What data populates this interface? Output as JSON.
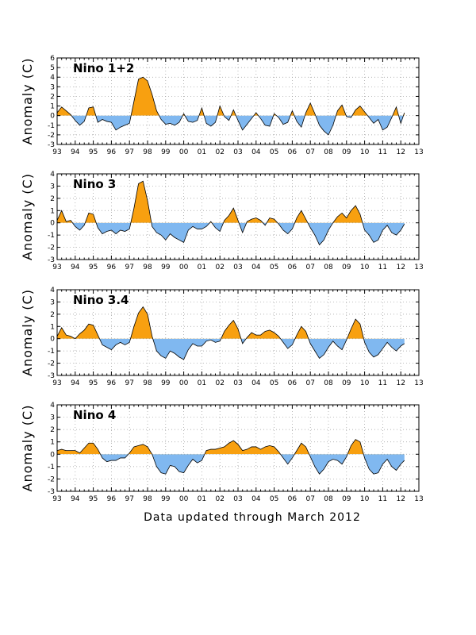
{
  "footer": "Data updated through March 2012",
  "colors": {
    "positive": "#f8a010",
    "negative": "#80b8f0",
    "line": "#000000"
  },
  "chart_data": [
    {
      "type": "area",
      "title": "Nino 1+2",
      "ylabel": "Anomaly (C)",
      "ylim": [
        -3,
        6
      ],
      "yticks": [
        -3,
        -2,
        -1,
        0,
        1,
        2,
        3,
        4,
        5,
        6
      ],
      "xlim": [
        1993,
        2013
      ],
      "xticks": [
        "93",
        "94",
        "95",
        "96",
        "97",
        "98",
        "99",
        "00",
        "01",
        "02",
        "03",
        "04",
        "05",
        "06",
        "07",
        "08",
        "09",
        "10",
        "11",
        "12",
        "13"
      ],
      "x": [
        1993.0,
        1993.25,
        1993.5,
        1993.75,
        1994.0,
        1994.25,
        1994.5,
        1994.75,
        1995.0,
        1995.25,
        1995.5,
        1995.75,
        1996.0,
        1996.25,
        1996.5,
        1996.75,
        1997.0,
        1997.25,
        1997.5,
        1997.75,
        1998.0,
        1998.25,
        1998.5,
        1998.75,
        1999.0,
        1999.25,
        1999.5,
        1999.75,
        2000.0,
        2000.25,
        2000.5,
        2000.75,
        2001.0,
        2001.25,
        2001.5,
        2001.75,
        2002.0,
        2002.25,
        2002.5,
        2002.75,
        2003.0,
        2003.25,
        2003.5,
        2003.75,
        2004.0,
        2004.25,
        2004.5,
        2004.75,
        2005.0,
        2005.25,
        2005.5,
        2005.75,
        2006.0,
        2006.25,
        2006.5,
        2006.75,
        2007.0,
        2007.25,
        2007.5,
        2007.75,
        2008.0,
        2008.25,
        2008.5,
        2008.75,
        2009.0,
        2009.25,
        2009.5,
        2009.75,
        2010.0,
        2010.25,
        2010.5,
        2010.75,
        2011.0,
        2011.25,
        2011.5,
        2011.75,
        2012.0,
        2012.2
      ],
      "values": [
        0.3,
        0.9,
        0.5,
        0.1,
        -0.5,
        -1.0,
        -0.6,
        0.8,
        0.9,
        -0.7,
        -0.4,
        -0.6,
        -0.7,
        -1.5,
        -1.2,
        -1.0,
        -0.8,
        1.5,
        3.8,
        4.0,
        3.6,
        2.2,
        0.5,
        -0.4,
        -0.9,
        -0.8,
        -1.0,
        -0.7,
        0.2,
        -0.6,
        -0.7,
        -0.5,
        0.8,
        -0.8,
        -1.1,
        -0.7,
        1.0,
        -0.1,
        -0.5,
        0.6,
        -0.5,
        -1.5,
        -0.9,
        -0.3,
        0.3,
        -0.3,
        -1.0,
        -1.1,
        0.2,
        -0.2,
        -0.9,
        -0.7,
        0.5,
        -0.6,
        -1.2,
        0.3,
        1.3,
        0.2,
        -1.0,
        -1.6,
        -2.0,
        -1.0,
        0.5,
        1.1,
        -0.1,
        -0.2,
        0.6,
        1.0,
        0.4,
        -0.2,
        -0.8,
        -0.4,
        -1.5,
        -1.2,
        -0.2,
        0.9,
        -0.8,
        0.3
      ]
    },
    {
      "type": "area",
      "title": "Nino 3",
      "ylabel": "Anomaly (C)",
      "ylim": [
        -3,
        4
      ],
      "yticks": [
        -3,
        -2,
        -1,
        0,
        1,
        2,
        3,
        4
      ],
      "xlim": [
        1993,
        2013
      ],
      "xticks": [
        "93",
        "94",
        "95",
        "96",
        "97",
        "98",
        "99",
        "00",
        "01",
        "02",
        "03",
        "04",
        "05",
        "06",
        "07",
        "08",
        "09",
        "10",
        "11",
        "12",
        "13"
      ],
      "x": [
        1993.0,
        1993.25,
        1993.5,
        1993.75,
        1994.0,
        1994.25,
        1994.5,
        1994.75,
        1995.0,
        1995.25,
        1995.5,
        1995.75,
        1996.0,
        1996.25,
        1996.5,
        1996.75,
        1997.0,
        1997.25,
        1997.5,
        1997.75,
        1998.0,
        1998.25,
        1998.5,
        1998.75,
        1999.0,
        1999.25,
        1999.5,
        1999.75,
        2000.0,
        2000.25,
        2000.5,
        2000.75,
        2001.0,
        2001.25,
        2001.5,
        2001.75,
        2002.0,
        2002.25,
        2002.5,
        2002.75,
        2003.0,
        2003.25,
        2003.5,
        2003.75,
        2004.0,
        2004.25,
        2004.5,
        2004.75,
        2005.0,
        2005.25,
        2005.5,
        2005.75,
        2006.0,
        2006.25,
        2006.5,
        2006.75,
        2007.0,
        2007.25,
        2007.5,
        2007.75,
        2008.0,
        2008.25,
        2008.5,
        2008.75,
        2009.0,
        2009.25,
        2009.5,
        2009.75,
        2010.0,
        2010.25,
        2010.5,
        2010.75,
        2011.0,
        2011.25,
        2011.5,
        2011.75,
        2012.0,
        2012.2
      ],
      "values": [
        0.2,
        1.0,
        0.1,
        0.2,
        -0.3,
        -0.6,
        -0.2,
        0.8,
        0.7,
        -0.4,
        -0.9,
        -0.7,
        -0.6,
        -0.9,
        -0.6,
        -0.7,
        -0.5,
        1.2,
        3.2,
        3.4,
        1.8,
        -0.3,
        -0.8,
        -1.0,
        -1.4,
        -0.9,
        -1.2,
        -1.4,
        -1.6,
        -0.6,
        -0.3,
        -0.5,
        -0.5,
        -0.3,
        0.1,
        -0.4,
        -0.7,
        0.2,
        0.6,
        1.2,
        0.2,
        -0.8,
        0.1,
        0.3,
        0.4,
        0.2,
        -0.2,
        0.4,
        0.3,
        -0.1,
        -0.6,
        -0.9,
        -0.5,
        0.4,
        1.0,
        0.3,
        -0.4,
        -1.0,
        -1.8,
        -1.4,
        -0.6,
        0.0,
        0.5,
        0.8,
        0.4,
        1.0,
        1.4,
        0.7,
        -0.6,
        -1.0,
        -1.6,
        -1.4,
        -0.6,
        -0.2,
        -0.8,
        -1.0,
        -0.6,
        -0.1
      ]
    },
    {
      "type": "area",
      "title": "Nino 3.4",
      "ylabel": "Anomaly (C)",
      "ylim": [
        -3,
        4
      ],
      "yticks": [
        -3,
        -2,
        -1,
        0,
        1,
        2,
        3,
        4
      ],
      "xlim": [
        1993,
        2013
      ],
      "xticks": [
        "93",
        "94",
        "95",
        "96",
        "97",
        "98",
        "99",
        "00",
        "01",
        "02",
        "03",
        "04",
        "05",
        "06",
        "07",
        "08",
        "09",
        "10",
        "11",
        "12",
        "13"
      ],
      "x": [
        1993.0,
        1993.25,
        1993.5,
        1993.75,
        1994.0,
        1994.25,
        1994.5,
        1994.75,
        1995.0,
        1995.25,
        1995.5,
        1995.75,
        1996.0,
        1996.25,
        1996.5,
        1996.75,
        1997.0,
        1997.25,
        1997.5,
        1997.75,
        1998.0,
        1998.25,
        1998.5,
        1998.75,
        1999.0,
        1999.25,
        1999.5,
        1999.75,
        2000.0,
        2000.25,
        2000.5,
        2000.75,
        2001.0,
        2001.25,
        2001.5,
        2001.75,
        2002.0,
        2002.25,
        2002.5,
        2002.75,
        2003.0,
        2003.25,
        2003.5,
        2003.75,
        2004.0,
        2004.25,
        2004.5,
        2004.75,
        2005.0,
        2005.25,
        2005.5,
        2005.75,
        2006.0,
        2006.25,
        2006.5,
        2006.75,
        2007.0,
        2007.25,
        2007.5,
        2007.75,
        2008.0,
        2008.25,
        2008.5,
        2008.75,
        2009.0,
        2009.25,
        2009.5,
        2009.75,
        2010.0,
        2010.25,
        2010.5,
        2010.75,
        2011.0,
        2011.25,
        2011.5,
        2011.75,
        2012.0,
        2012.2
      ],
      "values": [
        0.2,
        0.9,
        0.3,
        0.2,
        0.0,
        0.4,
        0.7,
        1.2,
        1.1,
        0.3,
        -0.5,
        -0.7,
        -0.9,
        -0.5,
        -0.3,
        -0.5,
        -0.3,
        1.0,
        2.1,
        2.6,
        2.0,
        0.2,
        -1.0,
        -1.4,
        -1.6,
        -1.0,
        -1.2,
        -1.5,
        -1.7,
        -0.9,
        -0.4,
        -0.6,
        -0.6,
        -0.2,
        -0.1,
        -0.3,
        -0.2,
        0.6,
        1.1,
        1.5,
        0.8,
        -0.4,
        0.1,
        0.5,
        0.3,
        0.3,
        0.6,
        0.7,
        0.5,
        0.2,
        -0.3,
        -0.8,
        -0.5,
        0.3,
        1.0,
        0.6,
        -0.4,
        -1.0,
        -1.6,
        -1.3,
        -0.7,
        -0.2,
        -0.6,
        -0.9,
        -0.1,
        0.8,
        1.6,
        1.2,
        -0.3,
        -1.1,
        -1.5,
        -1.3,
        -0.8,
        -0.3,
        -0.7,
        -1.0,
        -0.6,
        -0.4
      ]
    },
    {
      "type": "area",
      "title": "Nino 4",
      "ylabel": "Anomaly (C)",
      "ylim": [
        -3,
        4
      ],
      "yticks": [
        -3,
        -2,
        -1,
        0,
        1,
        2,
        3,
        4
      ],
      "xlim": [
        1993,
        2013
      ],
      "xticks": [
        "93",
        "94",
        "95",
        "96",
        "97",
        "98",
        "99",
        "00",
        "01",
        "02",
        "03",
        "04",
        "05",
        "06",
        "07",
        "08",
        "09",
        "10",
        "11",
        "12",
        "13"
      ],
      "x": [
        1993.0,
        1993.25,
        1993.5,
        1993.75,
        1994.0,
        1994.25,
        1994.5,
        1994.75,
        1995.0,
        1995.25,
        1995.5,
        1995.75,
        1996.0,
        1996.25,
        1996.5,
        1996.75,
        1997.0,
        1997.25,
        1997.5,
        1997.75,
        1998.0,
        1998.25,
        1998.5,
        1998.75,
        1999.0,
        1999.25,
        1999.5,
        1999.75,
        2000.0,
        2000.25,
        2000.5,
        2000.75,
        2001.0,
        2001.25,
        2001.5,
        2001.75,
        2002.0,
        2002.25,
        2002.5,
        2002.75,
        2003.0,
        2003.25,
        2003.5,
        2003.75,
        2004.0,
        2004.25,
        2004.5,
        2004.75,
        2005.0,
        2005.25,
        2005.5,
        2005.75,
        2006.0,
        2006.25,
        2006.5,
        2006.75,
        2007.0,
        2007.25,
        2007.5,
        2007.75,
        2008.0,
        2008.25,
        2008.5,
        2008.75,
        2009.0,
        2009.25,
        2009.5,
        2009.75,
        2010.0,
        2010.25,
        2010.5,
        2010.75,
        2011.0,
        2011.25,
        2011.5,
        2011.75,
        2012.0,
        2012.2
      ],
      "values": [
        0.3,
        0.4,
        0.3,
        0.3,
        0.3,
        0.1,
        0.5,
        0.9,
        0.9,
        0.4,
        -0.3,
        -0.6,
        -0.5,
        -0.5,
        -0.3,
        -0.3,
        0.1,
        0.6,
        0.7,
        0.8,
        0.6,
        0.0,
        -1.0,
        -1.5,
        -1.6,
        -0.9,
        -1.0,
        -1.4,
        -1.5,
        -0.9,
        -0.4,
        -0.7,
        -0.5,
        0.3,
        0.4,
        0.4,
        0.5,
        0.6,
        0.9,
        1.1,
        0.8,
        0.3,
        0.4,
        0.6,
        0.6,
        0.4,
        0.6,
        0.7,
        0.6,
        0.2,
        -0.3,
        -0.8,
        -0.3,
        0.3,
        0.9,
        0.6,
        -0.2,
        -1.0,
        -1.6,
        -1.2,
        -0.6,
        -0.4,
        -0.5,
        -0.8,
        -0.2,
        0.7,
        1.2,
        1.0,
        -0.3,
        -1.2,
        -1.6,
        -1.5,
        -0.8,
        -0.4,
        -1.0,
        -1.3,
        -0.8,
        -0.5
      ]
    }
  ]
}
